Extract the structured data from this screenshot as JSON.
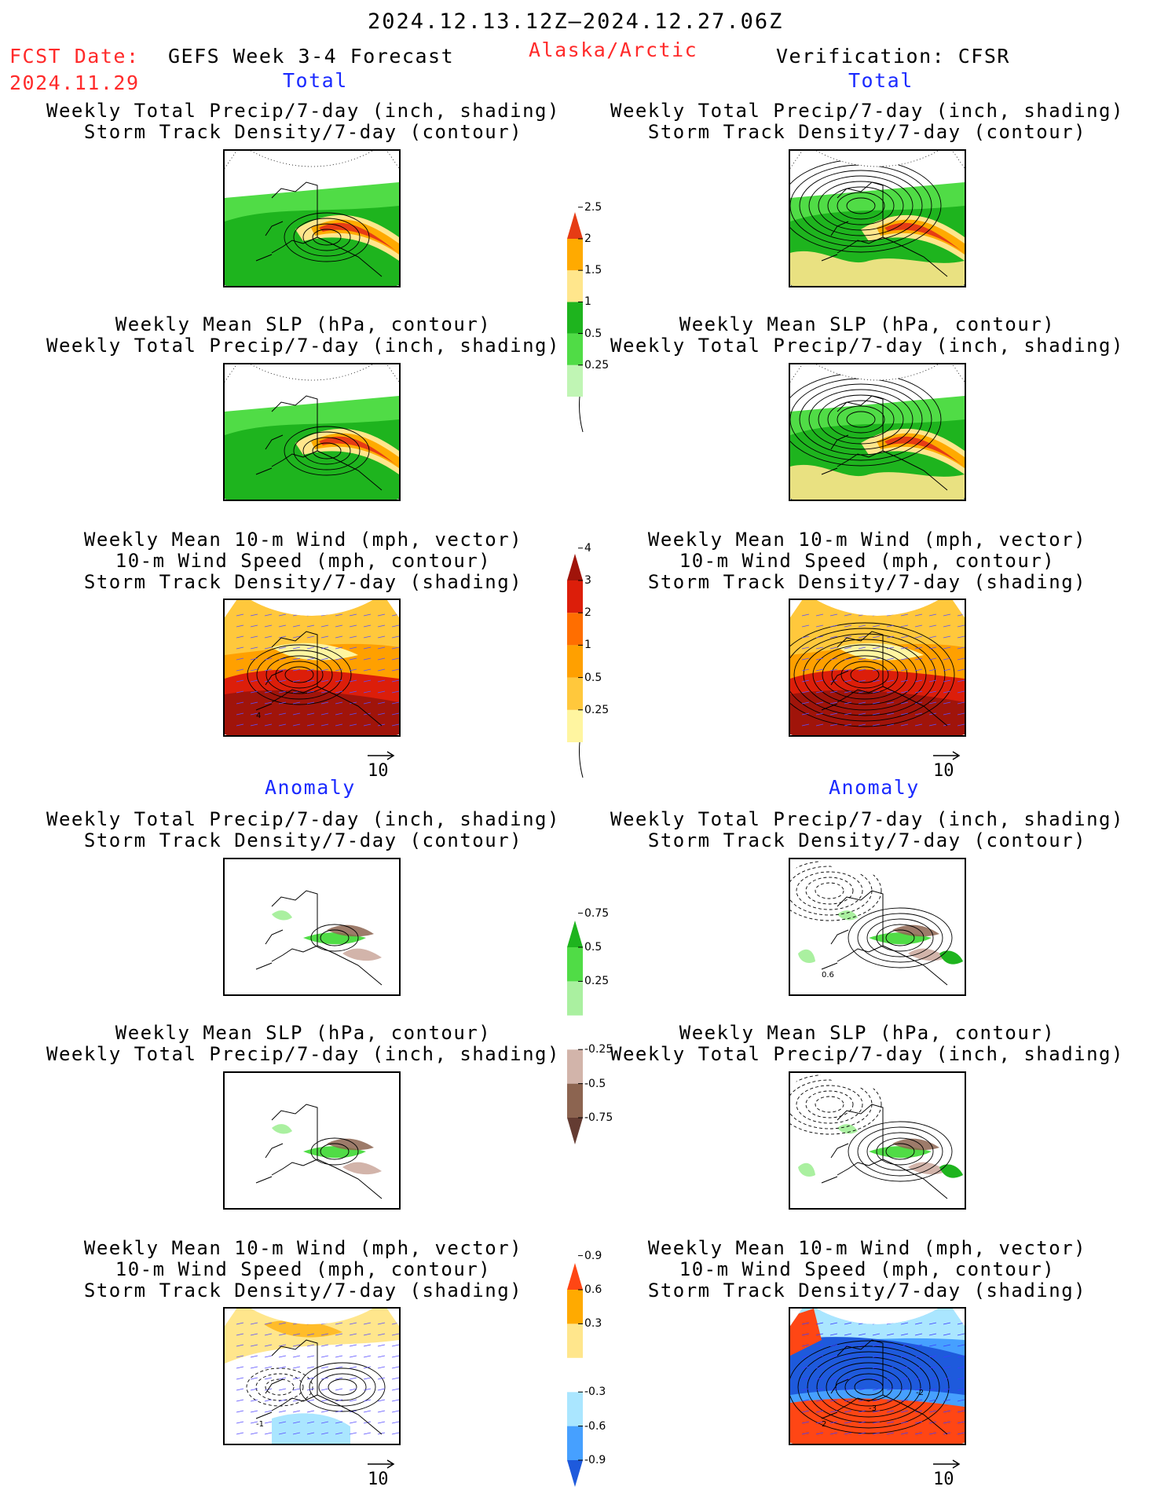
{
  "header": {
    "period": "2024.12.13.12Z–2024.12.27.06Z",
    "fcst_label": "FCST Date:",
    "fcst_date": "2024.11.29",
    "product": "GEFS Week 3-4 Forecast",
    "region": "Alaska/Arctic",
    "verification": "Verification: CFSR"
  },
  "sections": {
    "total_left": "Total",
    "total_right": "Total",
    "anomaly_left": "Anomaly",
    "anomaly_right": "Anomaly"
  },
  "captions": {
    "precip_track": [
      "Weekly Total Precip/7-day (inch, shading)",
      "Storm Track Density/7-day (contour)"
    ],
    "slp_precip": [
      "Weekly Mean SLP (hPa, contour)",
      "Weekly Total Precip/7-day (inch, shading)"
    ],
    "wind_track": [
      "Weekly Mean 10-m Wind (mph, vector)",
      "10-m Wind Speed (mph, contour)",
      "Storm Track Density/7-day (shading)"
    ]
  },
  "vector_ref": "10",
  "colors": {
    "precip": [
      "#c0f5b4",
      "#50dc46",
      "#1eb41e",
      "#ffe68c",
      "#ffaa00",
      "#e63c14"
    ],
    "track": [
      "#fff5a0",
      "#ffc83c",
      "#ffa000",
      "#ff6e00",
      "#dc1e0a",
      "#a0140a"
    ],
    "anom_precip": [
      "#643c32",
      "#8c6450",
      "#d2b4aa",
      "#ffffff",
      "#aaf0a0",
      "#50dc46",
      "#1eb41e"
    ],
    "anom_track": [
      "#1e5adc",
      "#46a0ff",
      "#aae6ff",
      "#ffffff",
      "#ffe68c",
      "#ffaa00",
      "#ff4614"
    ]
  },
  "colorbars": {
    "precip_total": [
      "0.25",
      "0.5",
      "1",
      "1.5",
      "2",
      "2.5"
    ],
    "track_total": [
      "0.25",
      "0.5",
      "1",
      "2",
      "3",
      "4"
    ],
    "precip_anomaly": [
      "-0.75",
      "-0.5",
      "-0.25",
      "0.25",
      "0.5",
      "0.75"
    ],
    "track_anomaly": [
      "-0.9",
      "-0.6",
      "-0.3",
      "0.3",
      "0.6",
      "0.9"
    ]
  },
  "chart_data": [
    {
      "type": "heatmap",
      "title": "Weekly Total Precip/7-day (inch, shading) / Storm Track Density/7-day (contour)",
      "column": "GEFS forecast",
      "section": "Total",
      "colorbar_levels": [
        0.25,
        0.5,
        1,
        1.5,
        2,
        2.5
      ]
    },
    {
      "type": "heatmap",
      "title": "Weekly Total Precip/7-day (inch, shading) / Storm Track Density/7-day (contour)",
      "column": "CFSR verification",
      "section": "Total",
      "colorbar_levels": [
        0.25,
        0.5,
        1,
        1.5,
        2,
        2.5
      ]
    },
    {
      "type": "heatmap",
      "title": "Weekly Mean SLP (hPa, contour) / Weekly Total Precip/7-day (inch, shading)",
      "column": "GEFS forecast",
      "section": "Total",
      "colorbar_levels": [
        0.25,
        0.5,
        1,
        1.5,
        2,
        2.5
      ]
    },
    {
      "type": "heatmap",
      "title": "Weekly Mean SLP (hPa, contour) / Weekly Total Precip/7-day (inch, shading)",
      "column": "CFSR verification",
      "section": "Total",
      "colorbar_levels": [
        0.25,
        0.5,
        1,
        1.5,
        2,
        2.5
      ]
    },
    {
      "type": "heatmap",
      "title": "Weekly Mean 10-m Wind (mph, vector) / 10-m Wind Speed (mph, contour) / Storm Track Density/7-day (shading)",
      "column": "GEFS forecast",
      "section": "Total",
      "colorbar_levels": [
        0.25,
        0.5,
        1,
        2,
        3,
        4
      ],
      "contour_labels": [
        "4"
      ],
      "vector_ref": 10
    },
    {
      "type": "heatmap",
      "title": "Weekly Mean 10-m Wind (mph, vector) / 10-m Wind Speed (mph, contour) / Storm Track Density/7-day (shading)",
      "column": "CFSR verification",
      "section": "Total",
      "colorbar_levels": [
        0.25,
        0.5,
        1,
        2,
        3,
        4
      ],
      "vector_ref": 10
    },
    {
      "type": "heatmap",
      "title": "Weekly Total Precip/7-day (inch, shading) / Storm Track Density/7-day (contour)",
      "column": "GEFS forecast",
      "section": "Anomaly",
      "colorbar_levels": [
        -0.75,
        -0.5,
        -0.25,
        0.25,
        0.5,
        0.75
      ]
    },
    {
      "type": "heatmap",
      "title": "Weekly Total Precip/7-day (inch, shading) / Storm Track Density/7-day (contour)",
      "column": "CFSR verification",
      "section": "Anomaly",
      "colorbar_levels": [
        -0.75,
        -0.5,
        -0.25,
        0.25,
        0.5,
        0.75
      ],
      "contour_labels": [
        "0.6"
      ]
    },
    {
      "type": "heatmap",
      "title": "Weekly Mean SLP (hPa, contour) / Weekly Total Precip/7-day (inch, shading)",
      "column": "GEFS forecast",
      "section": "Anomaly",
      "colorbar_levels": [
        -0.75,
        -0.5,
        -0.25,
        0.25,
        0.5,
        0.75
      ]
    },
    {
      "type": "heatmap",
      "title": "Weekly Mean SLP (hPa, contour) / Weekly Total Precip/7-day (inch, shading)",
      "column": "CFSR verification",
      "section": "Anomaly",
      "colorbar_levels": [
        -0.75,
        -0.5,
        -0.25,
        0.25,
        0.5,
        0.75
      ]
    },
    {
      "type": "heatmap",
      "title": "Weekly Mean 10-m Wind (mph, vector) / 10-m Wind Speed (mph, contour) / Storm Track Density/7-day (shading)",
      "column": "GEFS forecast",
      "section": "Anomaly",
      "colorbar_levels": [
        -0.9,
        -0.6,
        -0.3,
        0.3,
        0.6,
        0.9
      ],
      "contour_labels": [
        "-1"
      ],
      "vector_ref": 10
    },
    {
      "type": "heatmap",
      "title": "Weekly Mean 10-m Wind (mph, vector) / 10-m Wind Speed (mph, contour) / Storm Track Density/7-day (shading)",
      "column": "CFSR verification",
      "section": "Anomaly",
      "colorbar_levels": [
        -0.9,
        -0.6,
        -0.3,
        0.3,
        0.6,
        0.9
      ],
      "contour_labels": [
        "2",
        "-3",
        "-2"
      ],
      "vector_ref": 10
    }
  ]
}
